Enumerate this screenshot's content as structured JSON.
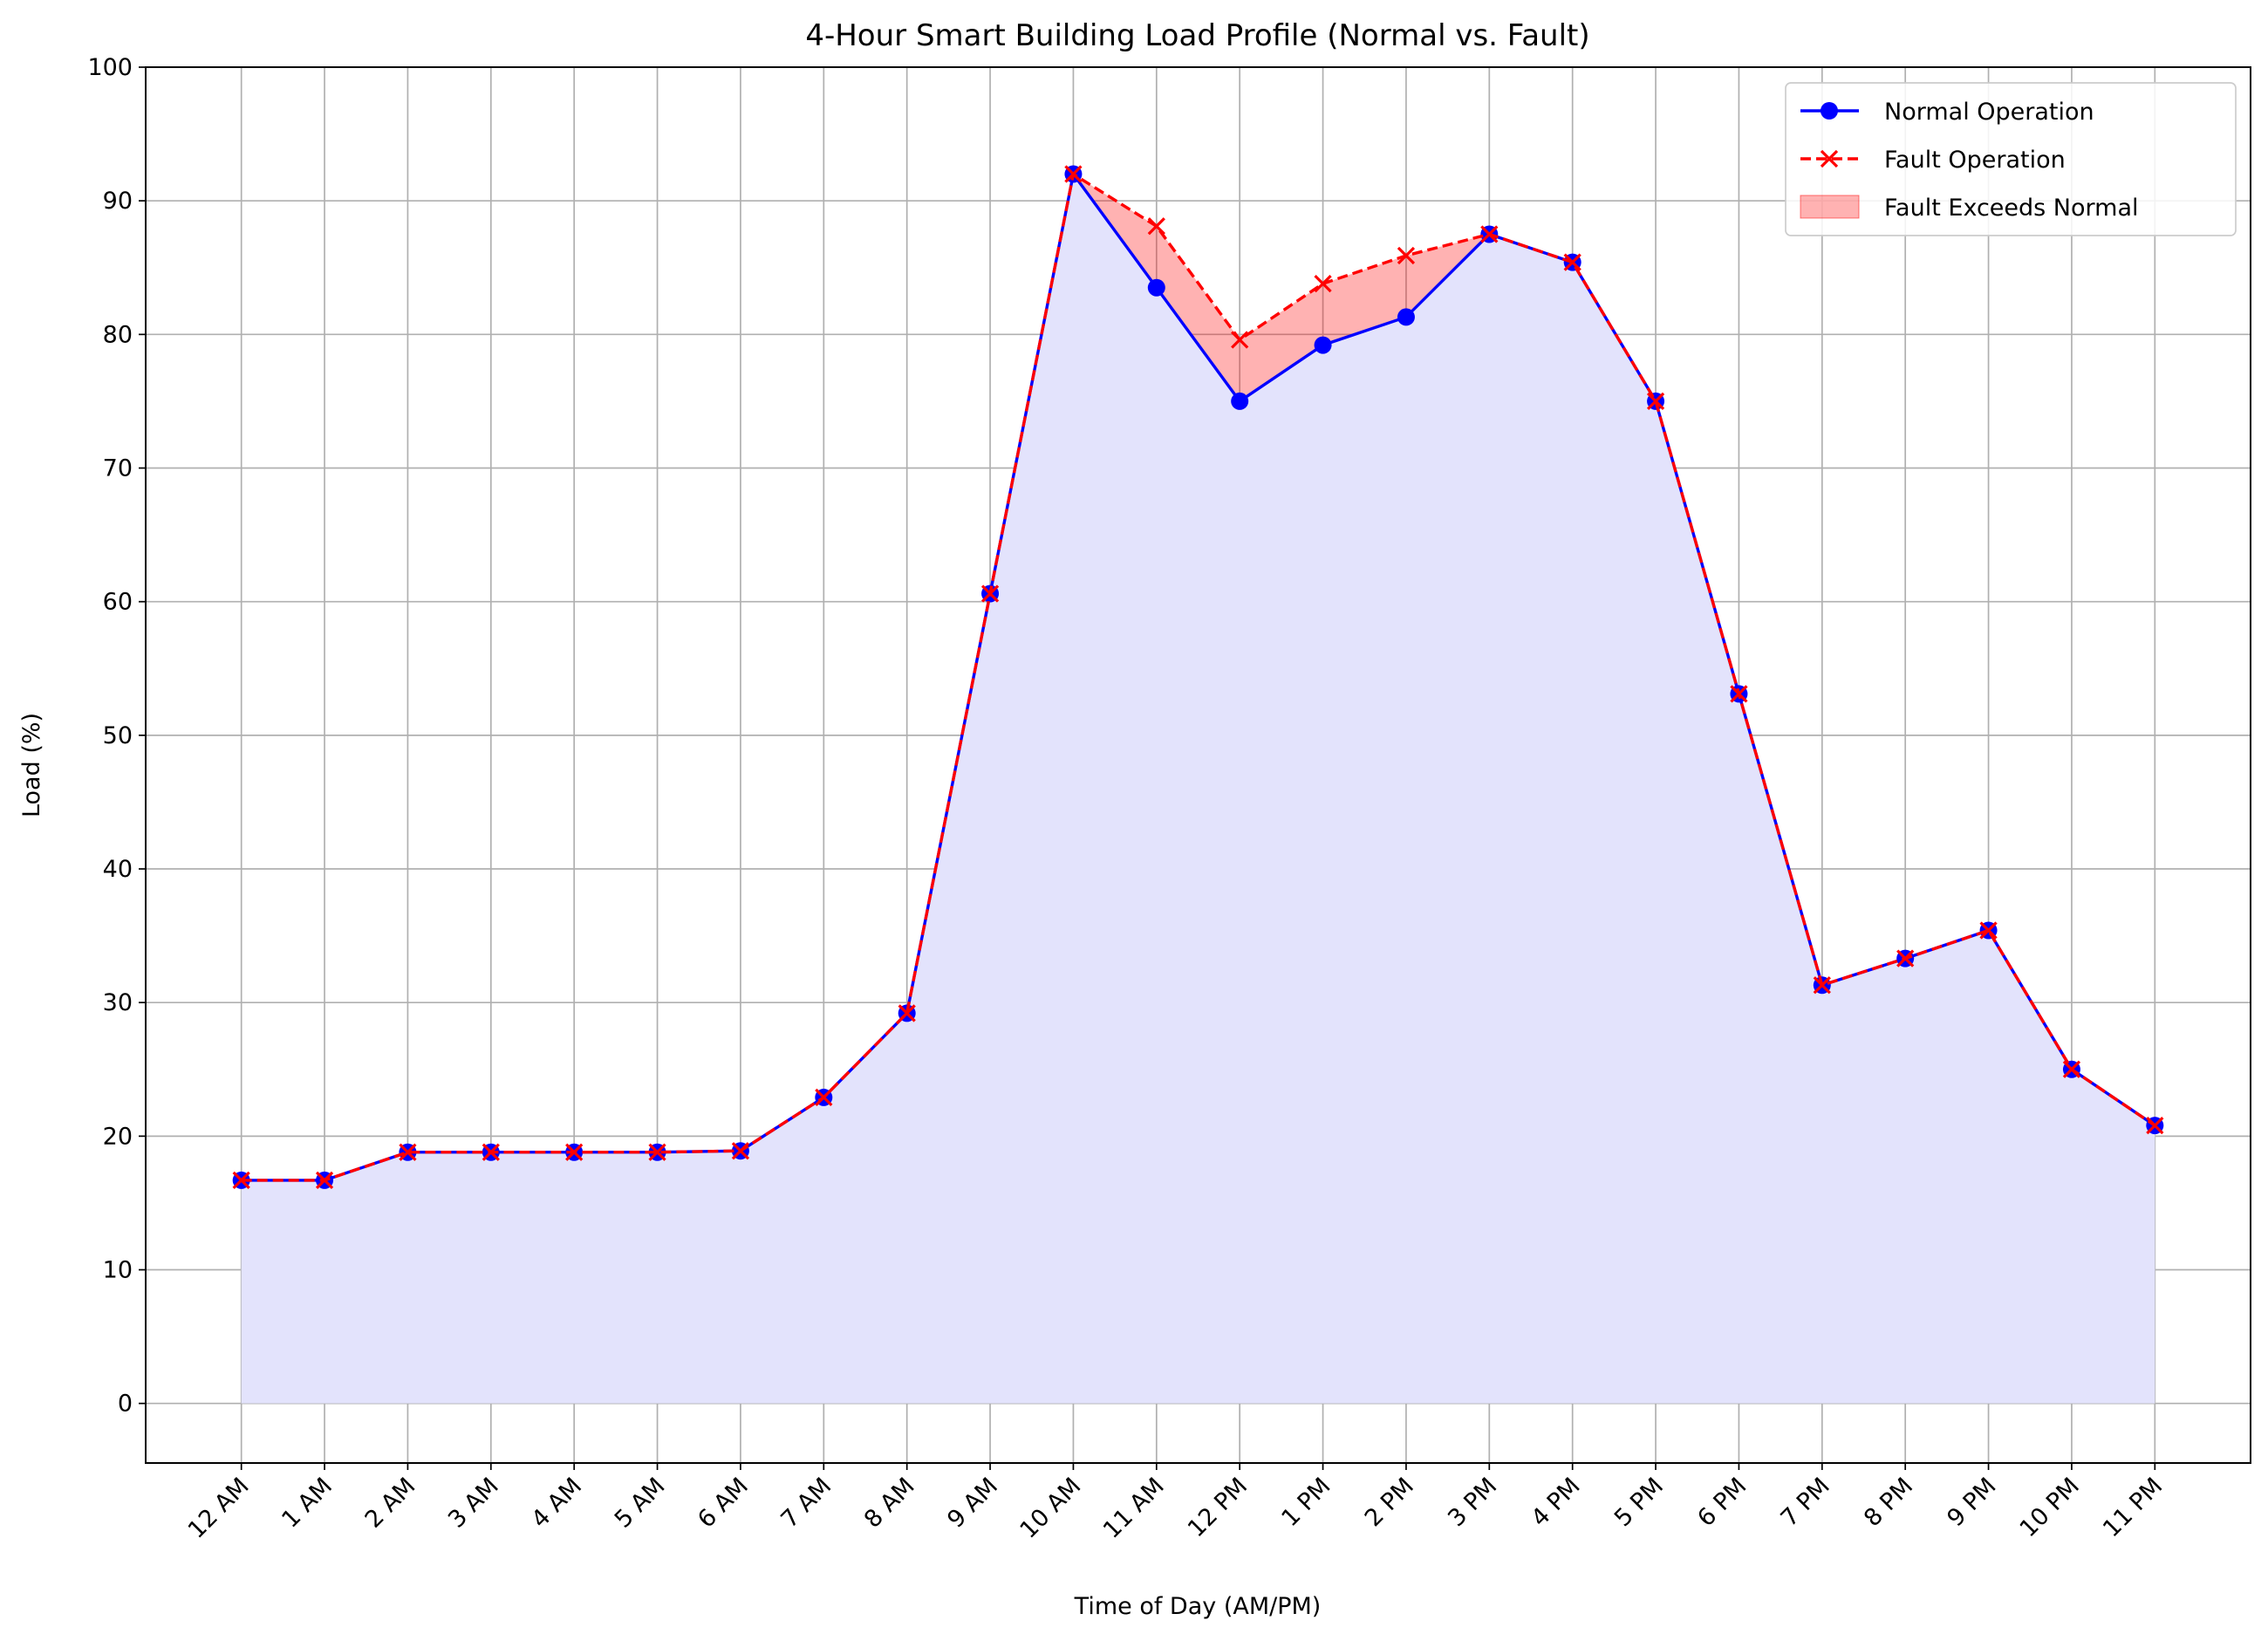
{
  "chart_data": {
    "type": "line",
    "title": "4-Hour Smart Building Load Profile (Normal vs. Fault)",
    "x_label": "Time of Day (AM/PM)",
    "y_label": "Load (%)",
    "categories": [
      "12 AM",
      "1 AM",
      "2 AM",
      "3 AM",
      "4 AM",
      "5 AM",
      "6 AM",
      "7 AM",
      "8 AM",
      "9 AM",
      "10 AM",
      "11 AM",
      "12 PM",
      "1 PM",
      "2 PM",
      "3 PM",
      "4 PM",
      "5 PM",
      "6 PM",
      "7 PM",
      "8 PM",
      "9 PM",
      "10 PM",
      "11 PM"
    ],
    "series": [
      {
        "name": "Normal Operation",
        "color": "#0000ff",
        "marker": "circle",
        "dash": "solid",
        "values": [
          16.7,
          16.7,
          18.8,
          18.8,
          18.8,
          18.8,
          18.9,
          22.9,
          29.2,
          60.6,
          92.0,
          83.5,
          75.0,
          79.2,
          81.3,
          87.5,
          85.4,
          75.0,
          53.1,
          31.3,
          33.3,
          35.4,
          25.0,
          20.8
        ]
      },
      {
        "name": "Fault Operation",
        "color": "#ff0000",
        "marker": "x",
        "dash": "dashed",
        "values": [
          16.7,
          16.7,
          18.8,
          18.8,
          18.8,
          18.8,
          18.9,
          22.9,
          29.2,
          60.6,
          92.0,
          88.1,
          79.6,
          83.8,
          85.9,
          87.5,
          85.4,
          75.0,
          53.1,
          31.3,
          33.3,
          35.4,
          25.0,
          20.8
        ]
      }
    ],
    "area_color": "#e3e3fc",
    "fill_between": {
      "name": "Fault Exceeds Normal",
      "color": "#ff0000",
      "opacity": 0.3
    },
    "ylim": [
      -4.46,
      100
    ],
    "yticks": [
      0,
      10,
      20,
      30,
      40,
      50,
      60,
      70,
      80,
      90,
      100
    ],
    "grid": true,
    "legend": "upper right"
  }
}
